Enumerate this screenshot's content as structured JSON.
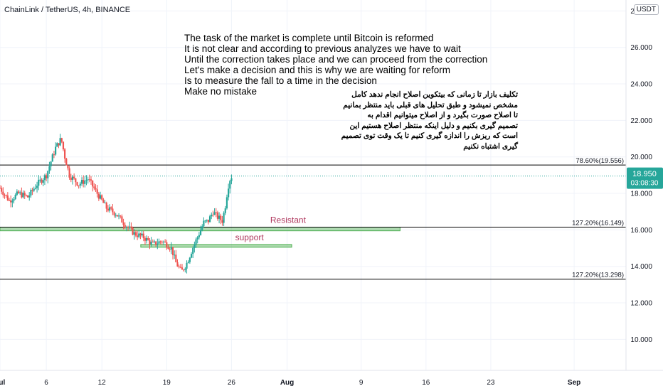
{
  "header": {
    "symbol": "ChainLink / TetherUS, 4h, BINANCE",
    "currency": "USDT"
  },
  "notes": {
    "english": [
      "The task of the market is complete until Bitcoin is reformed",
      "It is not clear and according to previous analyzes we have to wait",
      "Until the correction takes place and we can proceed from the correction",
      "Let's make a decision and this is why we are waiting for reform",
      "Is to measure the fall to a time in the decision",
      "Make no mistake"
    ],
    "persian": [
      "تکلیف بازار تا زمانی که بیتکوین اصلاح انجام ندهد کامل",
      "مشخص نمیشود و طبق تحلیل های قبلی باید منتظر بمانیم",
      "تا اصلاح صورت بگیرد و از اصلاح میتوانیم اقدام به",
      "تصمیم گیری بکنیم و دلیل اینکه منتظر اصلاح هستیم این",
      "است که ریزش را اندازه گیری کنیم تا یک وقت توی تصمیم",
      "گیری اشتباه نکنیم"
    ]
  },
  "chart_data": {
    "type": "candlestick",
    "ylim": [
      8.3,
      28.6
    ],
    "y_ticks": [
      "10.000",
      "12.000",
      "14.000",
      "16.000",
      "18.000",
      "20.000",
      "22.000",
      "24.000",
      "26.000",
      "28.000"
    ],
    "x_ticks": [
      "Jul",
      "6",
      "12",
      "19",
      "26",
      "Aug",
      "9",
      "16",
      "23",
      "Sep"
    ],
    "x_tick_days": [
      1,
      6,
      12,
      19,
      26,
      32,
      40,
      47,
      54,
      63
    ],
    "x_range_days": [
      1,
      68.6
    ],
    "current_price": {
      "price": "18.950",
      "countdown": "03:08:30",
      "value": 18.95,
      "color": "#26a69a"
    },
    "levels": [
      {
        "label": "78.60%(19.556)",
        "value": 19.556,
        "color": "#000000"
      },
      {
        "label": "127.20%(16.149)",
        "value": 16.149,
        "color": "#000000"
      },
      {
        "label": "127.20%(13.298)",
        "value": 13.298,
        "color": "#000000"
      }
    ],
    "zones": [
      {
        "label": "Resistant",
        "low": 15.95,
        "high": 16.15,
        "start_day": 1,
        "end_day": 44.2,
        "color": "#4caf50",
        "label_color": "#b0395f"
      },
      {
        "label": "support",
        "low": 15.05,
        "high": 15.2,
        "start_day": 16.2,
        "end_day": 32.5,
        "color": "#4caf50",
        "label_color": "#b0395f"
      }
    ],
    "up_color": "#26a69a",
    "down_color": "#ef5350",
    "close_path": [
      [
        1.0,
        18.3
      ],
      [
        2.0,
        17.6
      ],
      [
        3.0,
        18.0
      ],
      [
        4.0,
        17.8
      ],
      [
        5.0,
        18.5
      ],
      [
        6.0,
        19.0
      ],
      [
        7.0,
        20.5
      ],
      [
        7.6,
        21.0
      ],
      [
        8.0,
        20.0
      ],
      [
        8.5,
        19.0
      ],
      [
        9.5,
        18.5
      ],
      [
        10.5,
        18.8
      ],
      [
        11.5,
        18.0
      ],
      [
        12.5,
        17.2
      ],
      [
        13.5,
        16.9
      ],
      [
        14.5,
        16.3
      ],
      [
        15.5,
        15.8
      ],
      [
        16.5,
        15.6
      ],
      [
        17.5,
        15.2
      ],
      [
        18.5,
        15.4
      ],
      [
        19.5,
        15.0
      ],
      [
        20.0,
        14.2
      ],
      [
        20.6,
        13.7
      ],
      [
        21.2,
        14.2
      ],
      [
        21.8,
        15.0
      ],
      [
        22.5,
        15.8
      ],
      [
        23.0,
        16.4
      ],
      [
        23.5,
        16.5
      ],
      [
        24.0,
        17.0
      ],
      [
        24.5,
        16.7
      ],
      [
        25.0,
        16.5
      ],
      [
        25.3,
        17.2
      ],
      [
        25.6,
        18.3
      ],
      [
        25.9,
        18.9
      ],
      [
        26.1,
        18.95
      ]
    ]
  }
}
